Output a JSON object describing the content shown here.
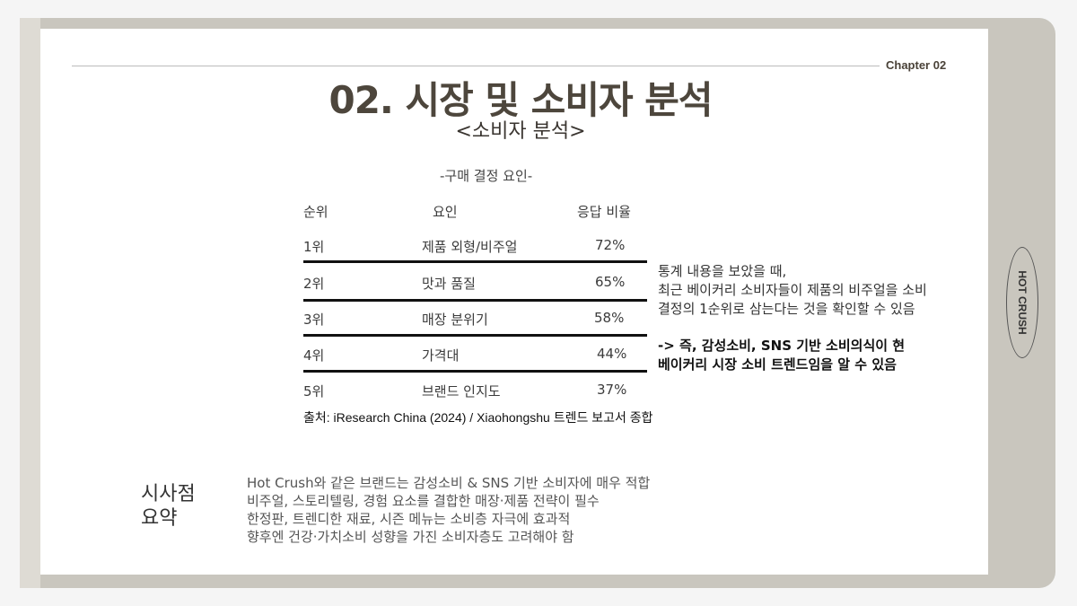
{
  "chapter": "Chapter 02",
  "title": "02. 시장 및 소비자 분석",
  "subtitle": "<소비자 분석>",
  "table": {
    "caption": "-구매 결정 요인-",
    "headers": [
      "순위",
      "요인",
      "응답 비율"
    ],
    "rows": [
      [
        "1위",
        "제품 외형/비주얼",
        "72%"
      ],
      [
        "2위",
        "맛과 품질",
        "65%"
      ],
      [
        "3위",
        "매장 분위기",
        "58%"
      ],
      [
        "4위",
        "가격대",
        "44%"
      ],
      [
        "5위",
        "브랜드 인지도",
        "37%"
      ]
    ],
    "source": "출처: iResearch China (2024) / Xiaohongshu 트렌드 보고서 종합"
  },
  "note": {
    "lines": [
      "통계 내용을 보았을 때,",
      "최근 베이커리 소비자들이 제품의 비주얼을 소비",
      "결정의 1순위로 삼는다는 것을 확인할 수 있음"
    ],
    "conclusion": [
      "-> 즉, 감성소비, SNS 기반 소비의식이 현",
      "베이커리 시장 소비 트렌드임을 알 수 있음"
    ]
  },
  "badge": "HOT CRUSH",
  "summary": {
    "heading": [
      "시사점",
      "요약"
    ],
    "lines": [
      "Hot Crush와 같은 브랜드는 감성소비 & SNS 기반 소비자에 매우 적합",
      "비주얼, 스토리텔링, 경험 요소를 결합한 매장·제품 전략이 필수",
      "한정판, 트렌디한 재료, 시즌 메뉴는 소비층 자극에 효과적",
      "향후엔 건강·가치소비 성향을 가진 소비자층도 고려해야 함"
    ]
  }
}
